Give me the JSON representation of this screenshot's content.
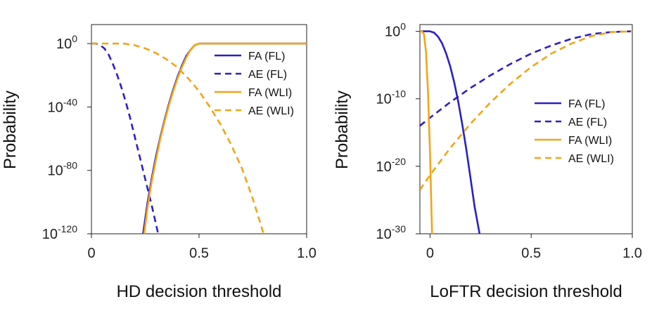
{
  "chart_data": [
    {
      "type": "line",
      "xlabel": "HD decision threshold",
      "ylabel": "Probability",
      "y_scale": "log",
      "xlim": [
        0,
        1.0
      ],
      "ylim_exp": [
        -120,
        12
      ],
      "x_ticks": [
        {
          "v": 0,
          "label": "0"
        },
        {
          "v": 0.5,
          "label": "0.5"
        },
        {
          "v": 1.0,
          "label": "1.0"
        }
      ],
      "y_ticks": [
        {
          "e": 0,
          "base": "10",
          "exp": "0"
        },
        {
          "e": -40,
          "base": "10",
          "exp": "-40"
        },
        {
          "e": -80,
          "base": "10",
          "exp": "-80"
        },
        {
          "e": -120,
          "base": "10",
          "exp": "-120"
        }
      ],
      "legend": {
        "position": "top-right"
      },
      "series": [
        {
          "name": "FA (FL)",
          "color": "#2b1fc4",
          "dash": "solid",
          "x": [
            0.24,
            0.26,
            0.28,
            0.3,
            0.32,
            0.34,
            0.36,
            0.38,
            0.4,
            0.42,
            0.44,
            0.46,
            0.48,
            0.5,
            0.52,
            1.0
          ],
          "log10_y": [
            -120,
            -101,
            -85,
            -71,
            -59,
            -48,
            -38,
            -29,
            -21,
            -14,
            -8,
            -4,
            -1,
            0,
            0,
            0
          ]
        },
        {
          "name": "AE (FL)",
          "color": "#2b1fc4",
          "dash": "dashed",
          "x": [
            0,
            0.02,
            0.04,
            0.06,
            0.08,
            0.1,
            0.12,
            0.14,
            0.16,
            0.18,
            0.2,
            0.22,
            0.24,
            0.26,
            0.28,
            0.3,
            0.31
          ],
          "log10_y": [
            0,
            0,
            -1,
            -3,
            -7,
            -13,
            -20,
            -28,
            -37,
            -47,
            -58,
            -69,
            -80,
            -91,
            -102,
            -114,
            -120
          ]
        },
        {
          "name": "FA (WLI)",
          "color": "#f2a516",
          "dash": "solid",
          "x": [
            0.245,
            0.26,
            0.28,
            0.3,
            0.32,
            0.34,
            0.36,
            0.38,
            0.4,
            0.42,
            0.44,
            0.46,
            0.48,
            0.5,
            0.52,
            1.0
          ],
          "log10_y": [
            -120,
            -104,
            -87,
            -73,
            -60,
            -49,
            -39,
            -30,
            -22,
            -15,
            -9,
            -4,
            -1,
            0,
            0,
            0
          ]
        },
        {
          "name": "AE (WLI)",
          "color": "#f2a516",
          "dash": "dashed",
          "x": [
            0,
            0.05,
            0.1,
            0.15,
            0.2,
            0.25,
            0.3,
            0.35,
            0.4,
            0.45,
            0.5,
            0.55,
            0.6,
            0.65,
            0.7,
            0.75,
            0.8
          ],
          "log10_y": [
            0,
            0,
            0,
            0,
            -1,
            -3,
            -6,
            -10,
            -15,
            -22,
            -30,
            -40,
            -51,
            -64,
            -79,
            -98,
            -120
          ]
        }
      ]
    },
    {
      "type": "line",
      "xlabel": "LoFTR decision threshold",
      "ylabel": "Probability",
      "y_scale": "log",
      "xlim": [
        -0.05,
        1.0
      ],
      "ylim_exp": [
        -30,
        1
      ],
      "x_ticks": [
        {
          "v": 0,
          "label": "0"
        },
        {
          "v": 0.5,
          "label": "0.5"
        },
        {
          "v": 1.0,
          "label": "1.0"
        }
      ],
      "y_ticks": [
        {
          "e": 0,
          "base": "10",
          "exp": "0"
        },
        {
          "e": -10,
          "base": "10",
          "exp": "-10"
        },
        {
          "e": -20,
          "base": "10",
          "exp": "-20"
        },
        {
          "e": -30,
          "base": "10",
          "exp": "-30"
        }
      ],
      "legend": {
        "position": "center-right"
      },
      "series": [
        {
          "name": "FA (FL)",
          "color": "#2b1fc4",
          "dash": "solid",
          "x": [
            -0.05,
            -0.02,
            0.0,
            0.02,
            0.04,
            0.06,
            0.08,
            0.1,
            0.12,
            0.14,
            0.16,
            0.18,
            0.2,
            0.22,
            0.245
          ],
          "log10_y": [
            0,
            0,
            0,
            -0.2,
            -0.8,
            -1.8,
            -3.3,
            -5.2,
            -7.6,
            -10.5,
            -13.9,
            -17.6,
            -21.7,
            -25.9,
            -30
          ]
        },
        {
          "name": "AE (FL)",
          "color": "#2b1fc4",
          "dash": "dashed",
          "x": [
            -0.05,
            0.0,
            0.1,
            0.2,
            0.3,
            0.4,
            0.5,
            0.6,
            0.7,
            0.8,
            0.9,
            1.0
          ],
          "log10_y": [
            -14,
            -12.8,
            -10.5,
            -8.4,
            -6.5,
            -4.8,
            -3.3,
            -2.1,
            -1.1,
            -0.4,
            -0.1,
            0
          ]
        },
        {
          "name": "FA (WLI)",
          "color": "#f2a516",
          "dash": "solid",
          "x": [
            -0.05,
            -0.04,
            -0.03,
            -0.02,
            -0.01,
            0.0,
            0.01
          ],
          "log10_y": [
            0,
            0,
            -0.4,
            -3,
            -9,
            -18,
            -30
          ]
        },
        {
          "name": "AE (WLI)",
          "color": "#f2a516",
          "dash": "dashed",
          "x": [
            -0.05,
            0.0,
            0.1,
            0.2,
            0.3,
            0.4,
            0.5,
            0.6,
            0.7,
            0.8,
            0.9,
            1.0
          ],
          "log10_y": [
            -23.5,
            -21.3,
            -17.3,
            -13.7,
            -10.5,
            -7.7,
            -5.3,
            -3.3,
            -1.8,
            -0.7,
            -0.1,
            0
          ]
        }
      ]
    }
  ]
}
